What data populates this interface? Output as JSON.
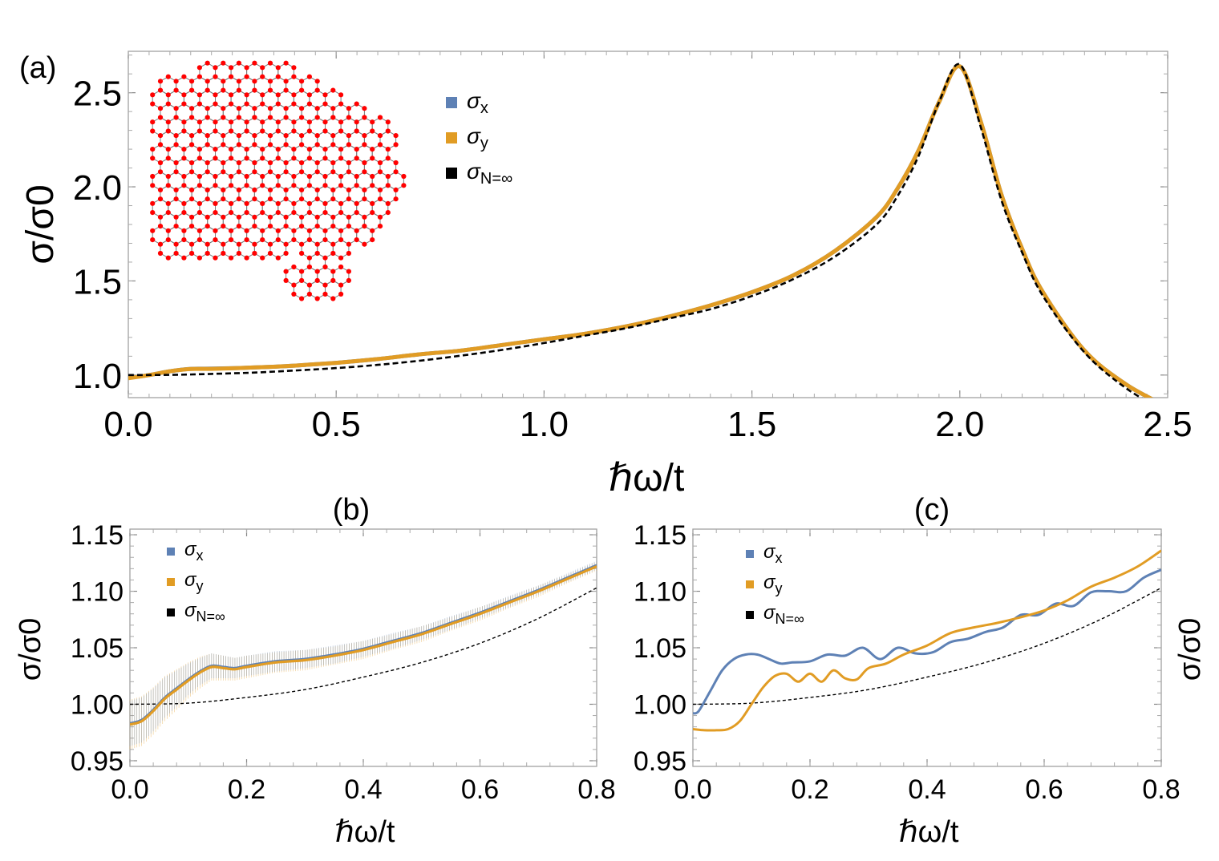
{
  "chart_data": [
    {
      "panel": "(a)",
      "type": "line",
      "xlabel": "ℏω/t",
      "ylabel": "σ/σ0",
      "xlim": [
        0,
        2.5
      ],
      "ylim": [
        0.88,
        2.72
      ],
      "xticks": [
        "0.0",
        "0.5",
        "1.0",
        "1.5",
        "2.0",
        "2.5"
      ],
      "yticks": [
        "1.0",
        "1.5",
        "2.0",
        "2.5"
      ],
      "legend": {
        "position": "top-center",
        "items": [
          {
            "base": "σ",
            "sub": "x"
          },
          {
            "base": "σ",
            "sub": "y"
          },
          {
            "base": "σ",
            "sub": "N=∞"
          }
        ]
      },
      "inset": "hexagonal lattice flake (red atoms)",
      "series": [
        {
          "name": "σx",
          "color": "#5e81b5",
          "style": "solid",
          "x": [
            0,
            0.05,
            0.1,
            0.15,
            0.2,
            0.3,
            0.4,
            0.5,
            0.6,
            0.7,
            0.8,
            0.9,
            1.0,
            1.1,
            1.2,
            1.3,
            1.4,
            1.5,
            1.6,
            1.7,
            1.8,
            1.85,
            1.9,
            1.95,
            2.0,
            2.05,
            2.1,
            2.15,
            2.2,
            2.3,
            2.4,
            2.5
          ],
          "y": [
            0.985,
            1.0,
            1.02,
            1.033,
            1.034,
            1.04,
            1.05,
            1.065,
            1.085,
            1.11,
            1.13,
            1.16,
            1.19,
            1.22,
            1.26,
            1.31,
            1.37,
            1.44,
            1.53,
            1.66,
            1.84,
            1.99,
            2.19,
            2.45,
            2.64,
            2.35,
            1.96,
            1.67,
            1.44,
            1.13,
            0.95,
            0.83
          ]
        },
        {
          "name": "σy",
          "color": "#e19c24",
          "style": "solid",
          "x": [
            0,
            0.05,
            0.1,
            0.15,
            0.2,
            0.3,
            0.4,
            0.5,
            0.6,
            0.7,
            0.8,
            0.9,
            1.0,
            1.1,
            1.2,
            1.3,
            1.4,
            1.5,
            1.6,
            1.7,
            1.8,
            1.85,
            1.9,
            1.95,
            2.0,
            2.05,
            2.1,
            2.15,
            2.2,
            2.3,
            2.4,
            2.5
          ],
          "y": [
            0.983,
            1.0,
            1.02,
            1.032,
            1.033,
            1.04,
            1.05,
            1.065,
            1.085,
            1.11,
            1.13,
            1.16,
            1.19,
            1.22,
            1.26,
            1.31,
            1.37,
            1.44,
            1.53,
            1.66,
            1.84,
            1.99,
            2.19,
            2.45,
            2.64,
            2.35,
            1.96,
            1.67,
            1.44,
            1.13,
            0.95,
            0.83
          ]
        },
        {
          "name": "σN=∞",
          "color": "#000000",
          "style": "dashed",
          "x": [
            0,
            0.1,
            0.2,
            0.3,
            0.4,
            0.5,
            0.6,
            0.7,
            0.8,
            0.9,
            1.0,
            1.1,
            1.2,
            1.3,
            1.4,
            1.5,
            1.6,
            1.7,
            1.8,
            1.85,
            1.9,
            1.95,
            2.0,
            2.05,
            2.1,
            2.15,
            2.2,
            2.3,
            2.4,
            2.5
          ],
          "y": [
            1.0,
            1.001,
            1.006,
            1.013,
            1.024,
            1.037,
            1.054,
            1.076,
            1.103,
            1.134,
            1.17,
            1.21,
            1.25,
            1.3,
            1.35,
            1.42,
            1.51,
            1.63,
            1.8,
            1.95,
            2.16,
            2.45,
            2.65,
            2.32,
            1.93,
            1.65,
            1.42,
            1.12,
            0.93,
            0.8
          ]
        }
      ]
    },
    {
      "panel": "(b)",
      "type": "line",
      "xlabel": "ℏω/t",
      "ylabel": "σ/σ0",
      "xlim": [
        0,
        0.8
      ],
      "ylim": [
        0.945,
        1.155
      ],
      "xticks": [
        "0.0",
        "0.2",
        "0.4",
        "0.6",
        "0.8"
      ],
      "yticks": [
        "0.95",
        "1.00",
        "1.05",
        "1.10",
        "1.15"
      ],
      "legend": {
        "position": "top-left",
        "items": [
          {
            "base": "σ",
            "sub": "x"
          },
          {
            "base": "σ",
            "sub": "y"
          },
          {
            "base": "σ",
            "sub": "N=∞"
          }
        ]
      },
      "error_bars": true,
      "series": [
        {
          "name": "σx",
          "color": "#5e81b5",
          "style": "solid",
          "x": [
            0,
            0.02,
            0.04,
            0.06,
            0.08,
            0.1,
            0.12,
            0.14,
            0.16,
            0.18,
            0.2,
            0.25,
            0.3,
            0.35,
            0.4,
            0.45,
            0.5,
            0.55,
            0.6,
            0.65,
            0.7,
            0.75,
            0.8
          ],
          "y": [
            0.983,
            0.986,
            0.995,
            1.006,
            1.014,
            1.022,
            1.029,
            1.034,
            1.033,
            1.032,
            1.034,
            1.038,
            1.04,
            1.044,
            1.049,
            1.056,
            1.063,
            1.072,
            1.081,
            1.091,
            1.101,
            1.112,
            1.123
          ],
          "err": [
            0.02,
            0.02,
            0.019,
            0.018,
            0.016,
            0.014,
            0.012,
            0.011,
            0.01,
            0.009,
            0.009,
            0.009,
            0.008,
            0.008,
            0.007,
            0.007,
            0.006,
            0.006,
            0.005,
            0.005,
            0.004,
            0.004,
            0.004
          ]
        },
        {
          "name": "σy",
          "color": "#e19c24",
          "style": "solid",
          "x": [
            0,
            0.02,
            0.04,
            0.06,
            0.08,
            0.1,
            0.12,
            0.14,
            0.16,
            0.18,
            0.2,
            0.25,
            0.3,
            0.35,
            0.4,
            0.45,
            0.5,
            0.55,
            0.6,
            0.65,
            0.7,
            0.75,
            0.8
          ],
          "y": [
            0.982,
            0.985,
            0.994,
            1.005,
            1.013,
            1.021,
            1.028,
            1.033,
            1.032,
            1.031,
            1.033,
            1.037,
            1.039,
            1.043,
            1.048,
            1.055,
            1.062,
            1.071,
            1.08,
            1.09,
            1.1,
            1.111,
            1.122
          ],
          "err": [
            0.022,
            0.022,
            0.021,
            0.02,
            0.018,
            0.016,
            0.014,
            0.012,
            0.011,
            0.01,
            0.01,
            0.009,
            0.009,
            0.008,
            0.008,
            0.007,
            0.007,
            0.006,
            0.006,
            0.005,
            0.005,
            0.004,
            0.004
          ]
        },
        {
          "name": "σN=∞",
          "color": "#000000",
          "style": "dashed",
          "x": [
            0,
            0.1,
            0.2,
            0.3,
            0.4,
            0.5,
            0.6,
            0.7,
            0.8
          ],
          "y": [
            1.0,
            1.001,
            1.006,
            1.013,
            1.024,
            1.037,
            1.054,
            1.076,
            1.103
          ]
        }
      ]
    },
    {
      "panel": "(c)",
      "type": "line",
      "xlabel": "ℏω/t",
      "ylabel": "σ/σ0",
      "xlim": [
        0,
        0.8
      ],
      "ylim": [
        0.945,
        1.155
      ],
      "xticks": [
        "0.0",
        "0.2",
        "0.4",
        "0.6",
        "0.8"
      ],
      "yticks": [
        "0.95",
        "1.00",
        "1.05",
        "1.10",
        "1.15"
      ],
      "legend": {
        "position": "top-left",
        "items": [
          {
            "base": "σ",
            "sub": "x"
          },
          {
            "base": "σ",
            "sub": "y"
          },
          {
            "base": "σ",
            "sub": "N=∞"
          }
        ]
      },
      "series": [
        {
          "name": "σx",
          "color": "#5e81b5",
          "style": "solid",
          "x": [
            0,
            0.01,
            0.03,
            0.05,
            0.07,
            0.09,
            0.11,
            0.13,
            0.15,
            0.17,
            0.2,
            0.23,
            0.26,
            0.29,
            0.32,
            0.35,
            0.38,
            0.41,
            0.44,
            0.47,
            0.5,
            0.53,
            0.56,
            0.59,
            0.62,
            0.65,
            0.68,
            0.71,
            0.74,
            0.77,
            0.8
          ],
          "y": [
            0.992,
            0.994,
            1.012,
            1.03,
            1.04,
            1.044,
            1.044,
            1.04,
            1.036,
            1.037,
            1.038,
            1.044,
            1.043,
            1.05,
            1.04,
            1.05,
            1.045,
            1.046,
            1.055,
            1.058,
            1.064,
            1.068,
            1.079,
            1.079,
            1.089,
            1.087,
            1.099,
            1.1,
            1.1,
            1.112,
            1.119
          ]
        },
        {
          "name": "σy",
          "color": "#e19c24",
          "style": "solid",
          "x": [
            0,
            0.02,
            0.04,
            0.06,
            0.08,
            0.1,
            0.12,
            0.14,
            0.16,
            0.18,
            0.2,
            0.22,
            0.24,
            0.26,
            0.28,
            0.3,
            0.33,
            0.36,
            0.4,
            0.44,
            0.48,
            0.52,
            0.56,
            0.6,
            0.64,
            0.68,
            0.72,
            0.76,
            0.8
          ],
          "y": [
            0.978,
            0.977,
            0.977,
            0.978,
            0.985,
            1.0,
            1.015,
            1.025,
            1.027,
            1.02,
            1.027,
            1.02,
            1.03,
            1.023,
            1.022,
            1.032,
            1.036,
            1.044,
            1.052,
            1.063,
            1.068,
            1.072,
            1.077,
            1.083,
            1.092,
            1.104,
            1.112,
            1.122,
            1.136
          ]
        },
        {
          "name": "σN=∞",
          "color": "#000000",
          "style": "dashed",
          "x": [
            0,
            0.1,
            0.2,
            0.3,
            0.4,
            0.5,
            0.6,
            0.7,
            0.8
          ],
          "y": [
            1.0,
            1.001,
            1.006,
            1.013,
            1.024,
            1.037,
            1.054,
            1.076,
            1.103
          ]
        }
      ]
    }
  ]
}
